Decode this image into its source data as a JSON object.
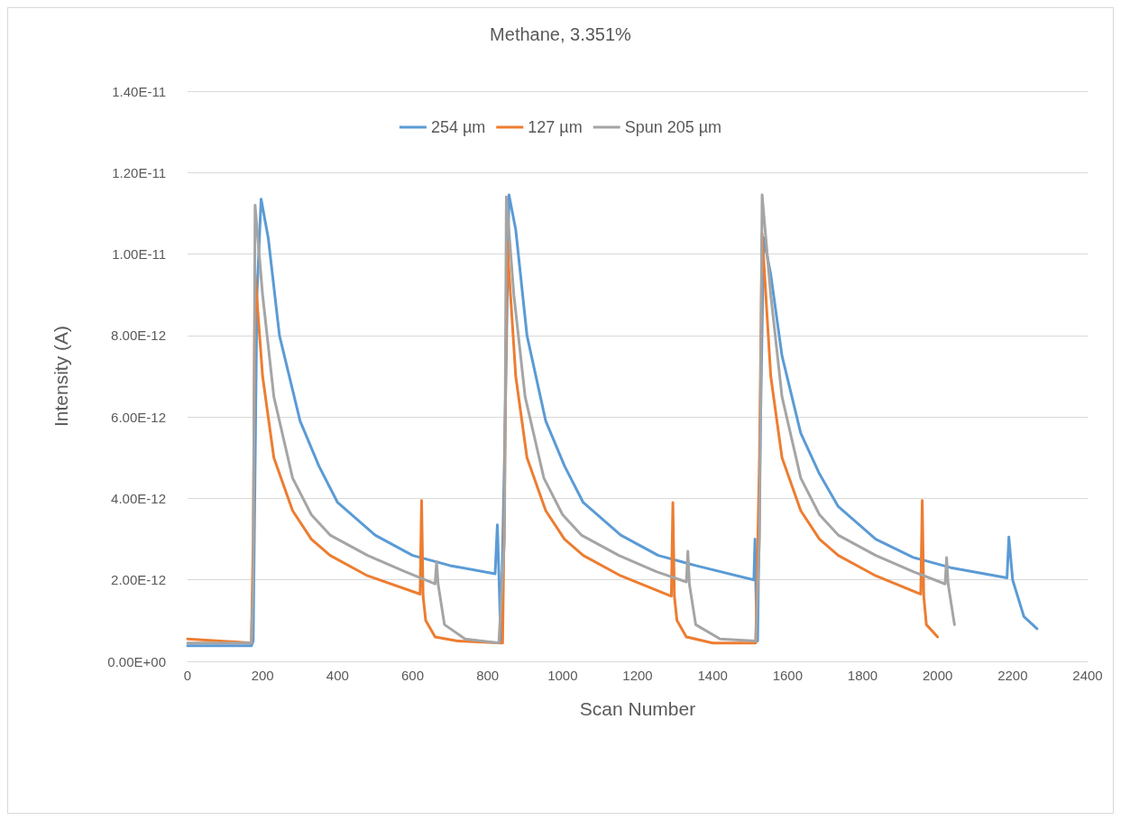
{
  "chart_data": {
    "type": "line",
    "title": "Methane, 3.351%",
    "xlabel": "Scan Number",
    "ylabel": "Intensity (A)",
    "xlim": [
      0,
      2400
    ],
    "xticks": [
      0,
      200,
      400,
      600,
      800,
      1000,
      1200,
      1400,
      1600,
      1800,
      2000,
      2200,
      2400
    ],
    "ylim": [
      0,
      1.4e-11
    ],
    "yticks": [
      {
        "value": 0,
        "label": "0.00E+00"
      },
      {
        "value": 2e-12,
        "label": "2.00E-12"
      },
      {
        "value": 4e-12,
        "label": "4.00E-12"
      },
      {
        "value": 6e-12,
        "label": "6.00E-12"
      },
      {
        "value": 8e-12,
        "label": "8.00E-12"
      },
      {
        "value": 1e-11,
        "label": "1.00E-11"
      },
      {
        "value": 1.2e-11,
        "label": "1.20E-11"
      },
      {
        "value": 1.4e-11,
        "label": "1.40E-11"
      }
    ],
    "grid": "y",
    "legend": "top",
    "marker": "none",
    "line_style": "solid",
    "series": [
      {
        "name": "254 µm",
        "color": "#5b9bd5",
        "x": [
          0,
          170,
          175,
          185,
          196,
          215,
          245,
          300,
          350,
          400,
          500,
          600,
          700,
          820,
          826,
          830,
          835,
          845,
          857,
          875,
          905,
          955,
          1005,
          1055,
          1155,
          1255,
          1355,
          1510,
          1513,
          1516,
          1520,
          1528,
          1536,
          1555,
          1585,
          1635,
          1685,
          1735,
          1835,
          1935,
          2035,
          2185,
          2190,
          2200,
          2230,
          2265
        ],
        "values": [
          3.8e-13,
          3.8e-13,
          5e-13,
          9e-12,
          1.135e-11,
          1.04e-11,
          8e-12,
          5.9e-12,
          4.8e-12,
          3.9e-12,
          3.1e-12,
          2.6e-12,
          2.35e-12,
          2.15e-12,
          3.35e-12,
          2.2e-12,
          5e-13,
          5e-12,
          1.145e-11,
          1.06e-11,
          8e-12,
          5.9e-12,
          4.8e-12,
          3.9e-12,
          3.1e-12,
          2.6e-12,
          2.35e-12,
          2e-12,
          3e-12,
          1.5e-12,
          5e-13,
          6e-12,
          1.04e-11,
          9.5e-12,
          7.5e-12,
          5.6e-12,
          4.6e-12,
          3.8e-12,
          3e-12,
          2.55e-12,
          2.3e-12,
          2.05e-12,
          3.05e-12,
          2e-12,
          1.1e-12,
          8e-13
        ]
      },
      {
        "name": "127 µm",
        "color": "#ed7d31",
        "x": [
          0,
          170,
          175,
          180,
          200,
          230,
          280,
          330,
          380,
          480,
          620,
          624,
          628,
          635,
          660,
          720,
          840,
          845,
          852,
          875,
          905,
          955,
          1005,
          1055,
          1155,
          1290,
          1294,
          1298,
          1305,
          1330,
          1400,
          1515,
          1525,
          1532,
          1555,
          1585,
          1635,
          1685,
          1735,
          1835,
          1955,
          1959,
          1963,
          1970,
          2000
        ],
        "values": [
          5.5e-13,
          4.5e-13,
          3e-12,
          9.5e-12,
          7e-12,
          5e-12,
          3.7e-12,
          3e-12,
          2.6e-12,
          2.1e-12,
          1.65e-12,
          3.95e-12,
          1.6e-12,
          1e-12,
          6e-13,
          5e-13,
          4.5e-13,
          4e-12,
          1.03e-11,
          7e-12,
          5e-12,
          3.7e-12,
          3e-12,
          2.6e-12,
          2.1e-12,
          1.6e-12,
          3.9e-12,
          1.6e-12,
          1e-12,
          6e-13,
          4.5e-13,
          4.5e-13,
          5e-12,
          1.05e-11,
          7e-12,
          5e-12,
          3.7e-12,
          3e-12,
          2.6e-12,
          2.1e-12,
          1.65e-12,
          3.95e-12,
          1.6e-12,
          9e-13,
          6e-13
        ]
      },
      {
        "name": "Spun 205 µm",
        "color": "#a5a5a5",
        "x": [
          0,
          170,
          175,
          180,
          200,
          230,
          280,
          330,
          380,
          480,
          580,
          660,
          664,
          668,
          685,
          740,
          830,
          845,
          850,
          870,
          900,
          950,
          1000,
          1050,
          1150,
          1250,
          1330,
          1334,
          1338,
          1355,
          1420,
          1515,
          1525,
          1532,
          1555,
          1585,
          1635,
          1685,
          1735,
          1835,
          1935,
          2020,
          2024,
          2028,
          2045
        ],
        "values": [
          4.5e-13,
          4.5e-13,
          2e-12,
          1.12e-11,
          9e-12,
          6.5e-12,
          4.5e-12,
          3.6e-12,
          3.1e-12,
          2.6e-12,
          2.2e-12,
          1.9e-12,
          2.45e-12,
          1.9e-12,
          9e-13,
          5.5e-13,
          4.5e-13,
          3e-12,
          1.14e-11,
          9e-12,
          6.5e-12,
          4.5e-12,
          3.6e-12,
          3.1e-12,
          2.6e-12,
          2.2e-12,
          1.95e-12,
          2.7e-12,
          1.9e-12,
          9e-13,
          5.5e-13,
          5e-13,
          3e-12,
          1.145e-11,
          9e-12,
          6.5e-12,
          4.5e-12,
          3.6e-12,
          3.1e-12,
          2.6e-12,
          2.2e-12,
          1.9e-12,
          2.55e-12,
          1.9e-12,
          9e-13
        ]
      }
    ]
  }
}
